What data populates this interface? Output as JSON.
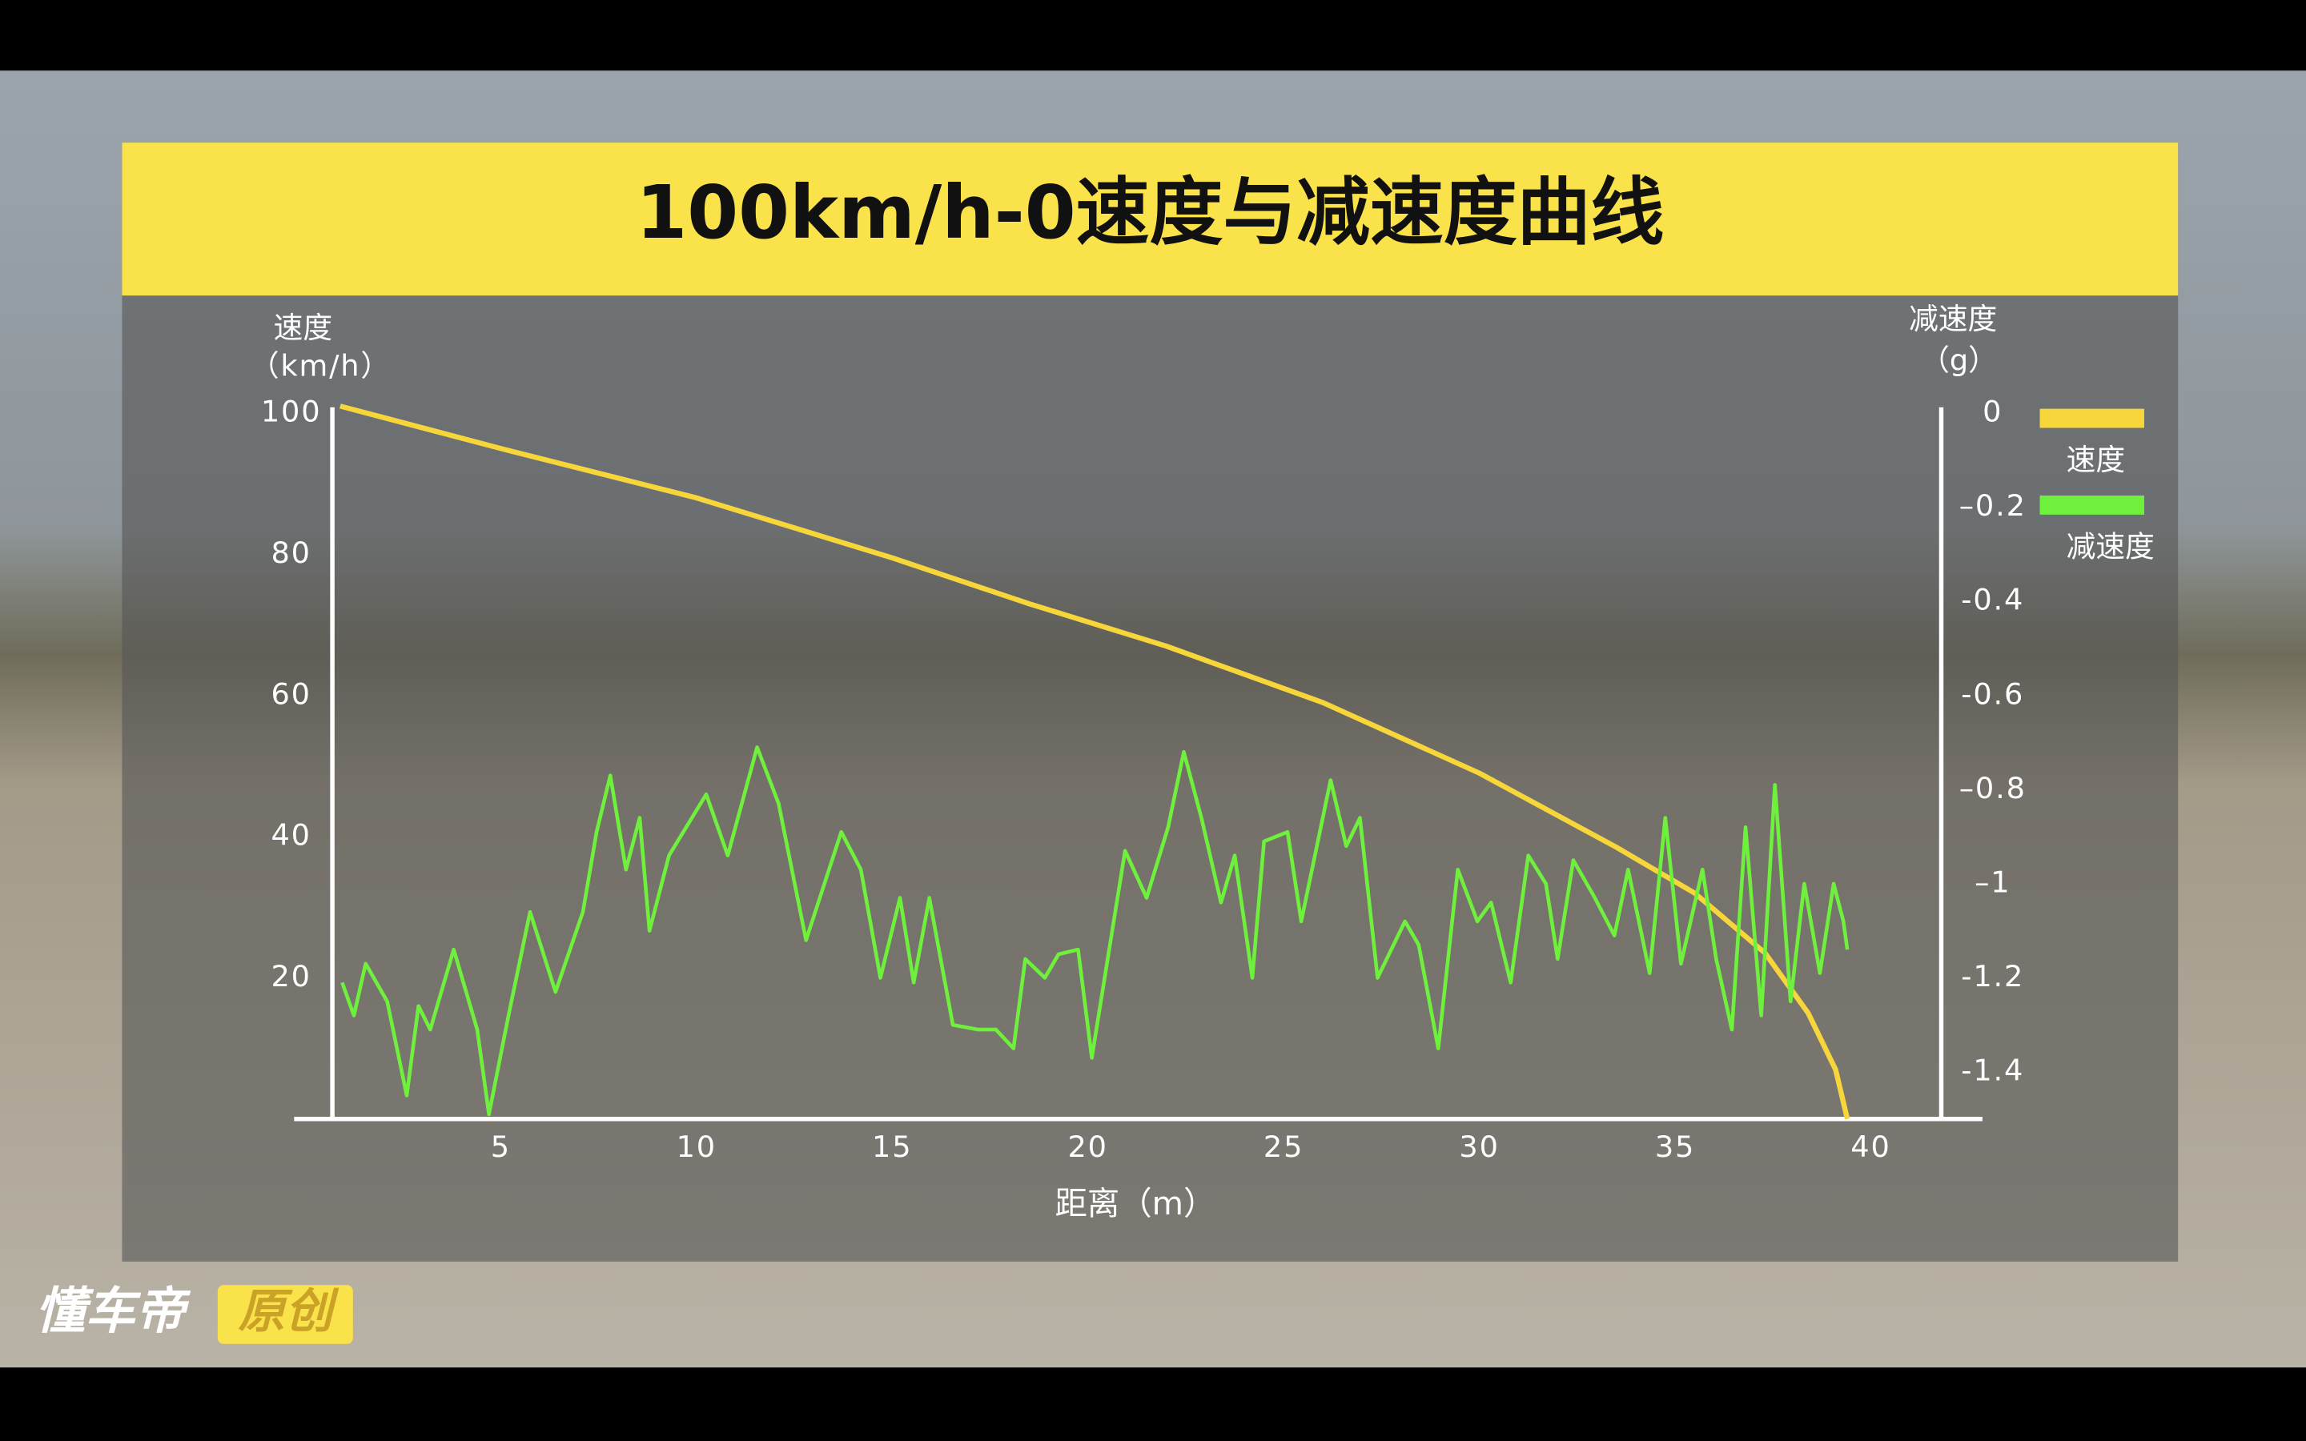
{
  "chart_data": {
    "type": "line",
    "title": "100km/h-0速度与减速度曲线",
    "xlabel": "距离（m）",
    "ylabel": [
      "速度",
      "（km/h）"
    ],
    "y2label": [
      "减速度",
      "（g）"
    ],
    "xlim": [
      0.7,
      41.8
    ],
    "xticks": [
      5,
      10,
      15,
      20,
      25,
      30,
      35,
      40
    ],
    "ylim": [
      0,
      100
    ],
    "yticks": [
      20,
      40,
      60,
      80,
      100
    ],
    "y2lim": [
      -1.5,
      0
    ],
    "y2ticks": [
      0,
      {
        "value": -0.2,
        "label": "–0.2"
      },
      {
        "value": -0.4,
        "label": "-0.4"
      },
      {
        "value": -0.6,
        "label": "-0.6"
      },
      {
        "value": -0.8,
        "label": "–0.8"
      },
      {
        "value": -1,
        "label": "–1"
      },
      {
        "value": -1.2,
        "label": "-1.2"
      },
      {
        "value": -1.4,
        "label": "-1.4"
      }
    ],
    "grid": false,
    "legend": "right",
    "series": [
      {
        "name": "速度",
        "color": "#f6d63a",
        "x": [
          0.9,
          5,
          10,
          15,
          18.5,
          22,
          26,
          30,
          33.5,
          35.5,
          37.3,
          38.4,
          39.1,
          39.4
        ],
        "values": [
          101,
          95,
          88,
          79.5,
          73,
          67,
          59,
          49,
          38.5,
          32,
          23.5,
          15,
          7,
          0
        ]
      },
      {
        "name": "减速度",
        "color": "#6ff03c",
        "axis": "y2",
        "x": [
          0.95,
          1.25,
          1.55,
          2.1,
          2.6,
          2.9,
          3.2,
          3.8,
          4.4,
          4.7,
          5.2,
          5.75,
          6.4,
          7.1,
          7.45,
          7.8,
          8.2,
          8.55,
          8.8,
          9.3,
          10.25,
          10.8,
          11.55,
          12.1,
          12.8,
          13.7,
          14.2,
          14.7,
          15.2,
          15.55,
          15.95,
          16.55,
          17.2,
          17.65,
          18.1,
          18.4,
          18.9,
          19.25,
          19.75,
          20.1,
          20.95,
          21.5,
          22.05,
          22.45,
          22.9,
          23.4,
          23.75,
          24.2,
          24.5,
          25.1,
          25.45,
          26.2,
          26.6,
          26.95,
          27.4,
          28.1,
          28.45,
          28.95,
          29.45,
          29.95,
          30.3,
          30.8,
          31.25,
          31.7,
          32.0,
          32.4,
          32.95,
          33.45,
          33.8,
          34.35,
          34.75,
          35.15,
          35.7,
          36.05,
          36.45,
          36.8,
          37.2,
          37.55,
          37.95,
          38.3,
          38.7,
          39.05,
          39.3,
          39.4
        ],
        "values": [
          -1.21,
          -1.28,
          -1.17,
          -1.25,
          -1.45,
          -1.26,
          -1.31,
          -1.14,
          -1.31,
          -1.49,
          -1.28,
          -1.06,
          -1.23,
          -1.06,
          -0.89,
          -0.77,
          -0.97,
          -0.86,
          -1.1,
          -0.94,
          -0.81,
          -0.94,
          -0.71,
          -0.83,
          -1.12,
          -0.89,
          -0.97,
          -1.2,
          -1.03,
          -1.21,
          -1.03,
          -1.3,
          -1.31,
          -1.31,
          -1.35,
          -1.16,
          -1.2,
          -1.15,
          -1.14,
          -1.37,
          -0.93,
          -1.03,
          -0.88,
          -0.72,
          -0.86,
          -1.04,
          -0.94,
          -1.2,
          -0.91,
          -0.89,
          -1.08,
          -0.78,
          -0.92,
          -0.86,
          -1.2,
          -1.08,
          -1.13,
          -1.35,
          -0.97,
          -1.08,
          -1.04,
          -1.21,
          -0.94,
          -1.0,
          -1.16,
          -0.95,
          -1.03,
          -1.11,
          -0.97,
          -1.19,
          -0.86,
          -1.17,
          -0.97,
          -1.16,
          -1.31,
          -0.88,
          -1.28,
          -0.79,
          -1.25,
          -1.0,
          -1.19,
          -1.0,
          -1.08,
          -1.14
        ]
      }
    ]
  },
  "watermark": {
    "brand": "懂车帝",
    "tag": "原创"
  }
}
